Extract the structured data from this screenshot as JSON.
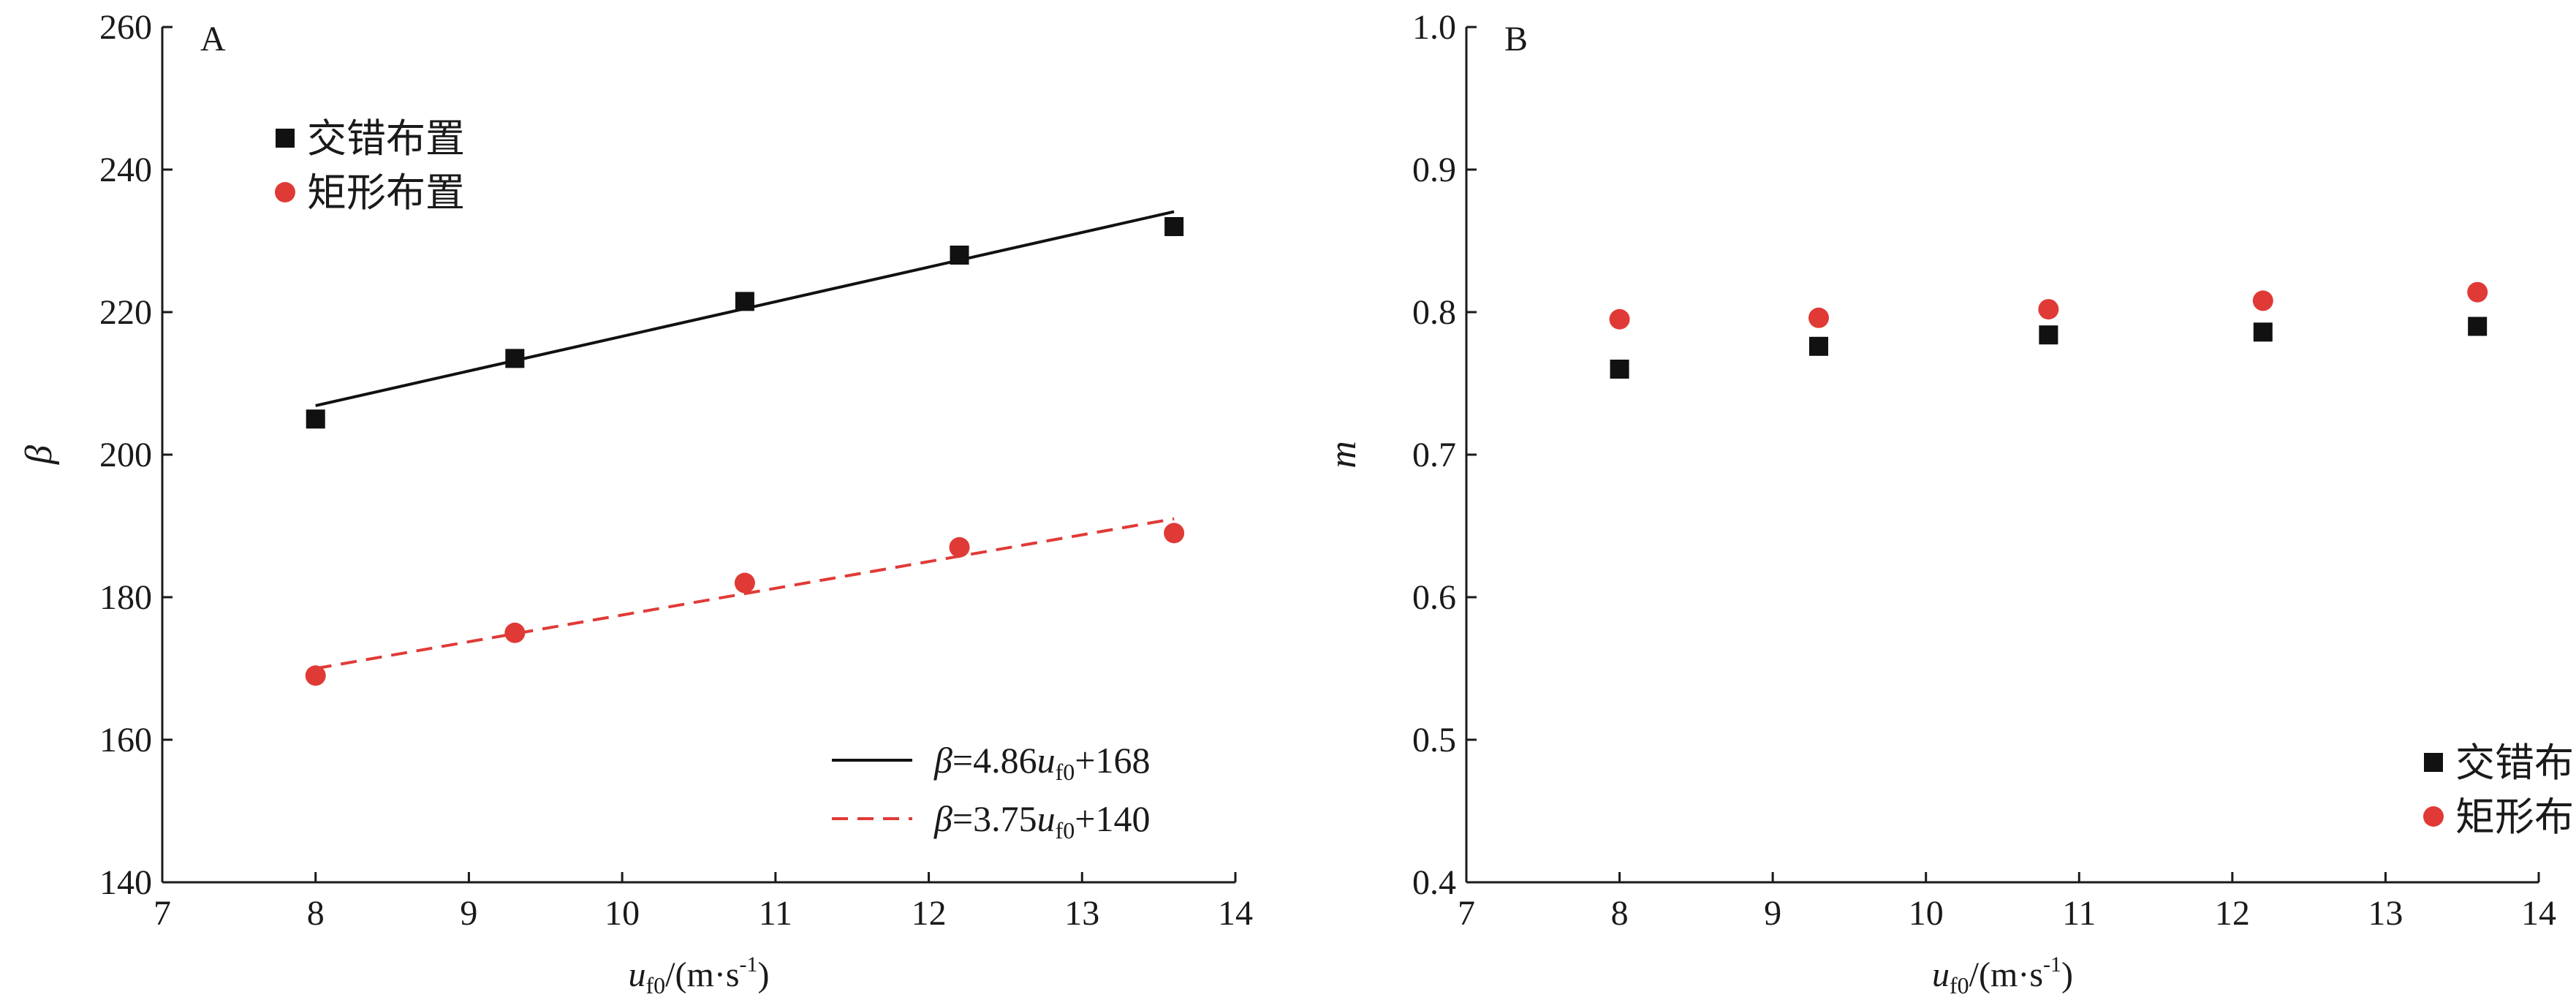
{
  "chart_data": [
    {
      "panel_label": "A",
      "type": "scatter",
      "xlim": [
        7,
        14
      ],
      "ylim": [
        140,
        260
      ],
      "xticks": [
        "7",
        "8",
        "9",
        "10",
        "11",
        "12",
        "13",
        "14"
      ],
      "yticks": [
        "140",
        "160",
        "180",
        "200",
        "220",
        "240",
        "260"
      ],
      "xlabel": {
        "var": "u",
        "sub": "f0",
        "unit": "/(m·s",
        "sup": "-1",
        "close": ")"
      },
      "ylabel": "β",
      "legend_position": "top-left",
      "series": [
        {
          "name": "交错布置",
          "marker": "square",
          "color": "#111111",
          "x": [
            8,
            9.3,
            10.8,
            12.2,
            13.6
          ],
          "y": [
            205,
            213.5,
            221.5,
            228,
            232
          ]
        },
        {
          "name": "矩形布置",
          "marker": "circle",
          "color": "#e03a36",
          "x": [
            8,
            9.3,
            10.8,
            12.2,
            13.6
          ],
          "y": [
            169,
            175,
            182,
            187,
            189
          ]
        }
      ],
      "fits": [
        {
          "label": {
            "lhs": "β",
            "eq": "=4.86",
            "var": "u",
            "sub": "f0",
            "rest": "+168"
          },
          "slope": 4.86,
          "intercept": 168,
          "x_range": [
            8,
            13.6
          ],
          "style": "solid",
          "color": "#111111"
        },
        {
          "label": {
            "lhs": "β",
            "eq": "=3.75",
            "var": "u",
            "sub": "f0",
            "rest": "+140"
          },
          "slope": 3.75,
          "intercept": 140,
          "x_range": [
            8,
            13.6
          ],
          "style": "dashed",
          "color": "#e03a36"
        }
      ],
      "fit_legend_position": "bottom-right"
    },
    {
      "panel_label": "B",
      "type": "scatter",
      "xlim": [
        7,
        14
      ],
      "ylim": [
        0.4,
        1.0
      ],
      "xticks": [
        "7",
        "8",
        "9",
        "10",
        "11",
        "12",
        "13",
        "14"
      ],
      "yticks": [
        "0.4",
        "0.5",
        "0.6",
        "0.7",
        "0.8",
        "0.9",
        "1.0"
      ],
      "xlabel": {
        "var": "u",
        "sub": "f0",
        "unit": "/(m·s",
        "sup": "-1",
        "close": ")"
      },
      "ylabel": "m",
      "legend_position": "bottom-right",
      "series": [
        {
          "name": "交错布置",
          "marker": "square",
          "color": "#111111",
          "x": [
            8,
            9.3,
            10.8,
            12.2,
            13.6
          ],
          "y": [
            0.76,
            0.776,
            0.784,
            0.786,
            0.79
          ]
        },
        {
          "name": "矩形布置",
          "marker": "circle",
          "color": "#e03a36",
          "x": [
            8,
            9.3,
            10.8,
            12.2,
            13.6
          ],
          "y": [
            0.795,
            0.796,
            0.802,
            0.808,
            0.814
          ]
        }
      ]
    }
  ]
}
